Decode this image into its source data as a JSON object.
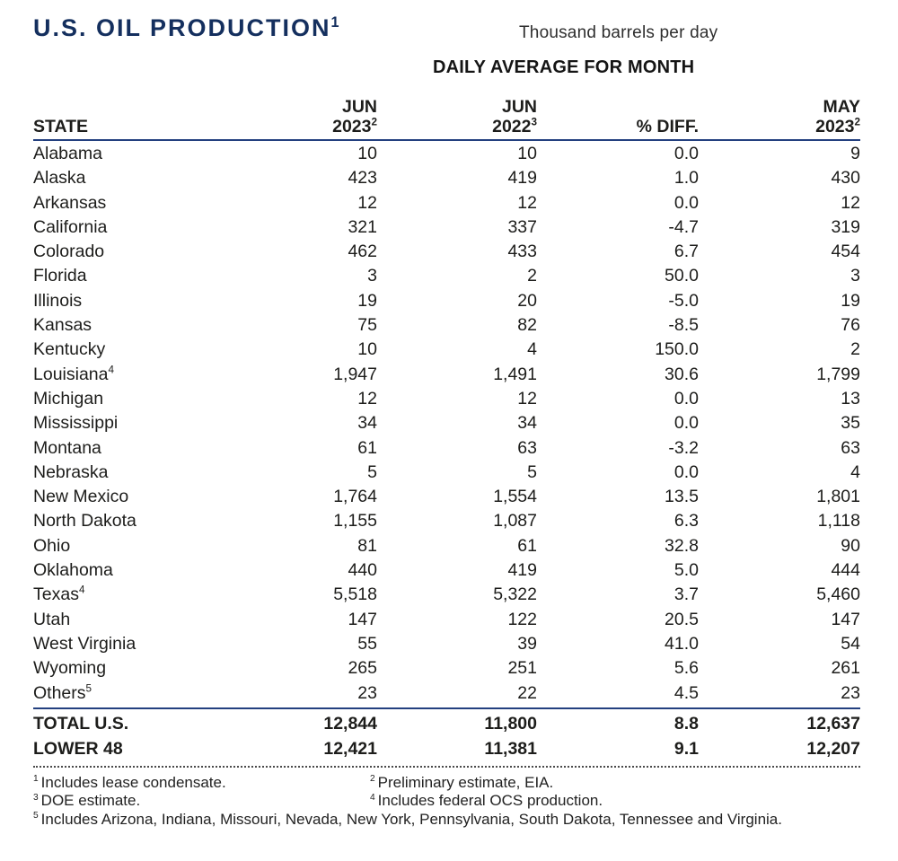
{
  "page": {
    "title": "U.S. OIL PRODUCTION",
    "title_sup": "1",
    "unit_label": "Thousand barrels per day",
    "table_caption": "DAILY AVERAGE FOR MONTH"
  },
  "colors": {
    "title_navy": "#142f5e",
    "rule_navy": "#23407f",
    "text": "#1d1d1b"
  },
  "table": {
    "headers": [
      {
        "line1": "",
        "line2": "STATE"
      },
      {
        "line1": "JUN",
        "line2": "2023",
        "sup": "2"
      },
      {
        "line1": "JUN",
        "line2": "2022",
        "sup": "3"
      },
      {
        "line1": "",
        "line2": "% DIFF."
      },
      {
        "line1": "MAY",
        "line2": "2023",
        "sup": "2"
      }
    ],
    "rows": [
      {
        "state": "Alabama",
        "jun2023": "10",
        "jun2022": "10",
        "pct_diff": "0.0",
        "may2023": "9"
      },
      {
        "state": "Alaska",
        "jun2023": "423",
        "jun2022": "419",
        "pct_diff": "1.0",
        "may2023": "430"
      },
      {
        "state": "Arkansas",
        "jun2023": "12",
        "jun2022": "12",
        "pct_diff": "0.0",
        "may2023": "12"
      },
      {
        "state": "California",
        "jun2023": "321",
        "jun2022": "337",
        "pct_diff": "-4.7",
        "may2023": "319"
      },
      {
        "state": "Colorado",
        "jun2023": "462",
        "jun2022": "433",
        "pct_diff": "6.7",
        "may2023": "454"
      },
      {
        "state": "Florida",
        "jun2023": "3",
        "jun2022": "2",
        "pct_diff": "50.0",
        "may2023": "3"
      },
      {
        "state": "Illinois",
        "jun2023": "19",
        "jun2022": "20",
        "pct_diff": "-5.0",
        "may2023": "19"
      },
      {
        "state": "Kansas",
        "jun2023": "75",
        "jun2022": "82",
        "pct_diff": "-8.5",
        "may2023": "76"
      },
      {
        "state": "Kentucky",
        "jun2023": "10",
        "jun2022": "4",
        "pct_diff": "150.0",
        "may2023": "2"
      },
      {
        "state": "Louisiana",
        "sup": "4",
        "jun2023": "1,947",
        "jun2022": "1,491",
        "pct_diff": "30.6",
        "may2023": "1,799"
      },
      {
        "state": "Michigan",
        "jun2023": "12",
        "jun2022": "12",
        "pct_diff": "0.0",
        "may2023": "13"
      },
      {
        "state": "Mississippi",
        "jun2023": "34",
        "jun2022": "34",
        "pct_diff": "0.0",
        "may2023": "35"
      },
      {
        "state": "Montana",
        "jun2023": "61",
        "jun2022": "63",
        "pct_diff": "-3.2",
        "may2023": "63"
      },
      {
        "state": "Nebraska",
        "jun2023": "5",
        "jun2022": "5",
        "pct_diff": "0.0",
        "may2023": "4"
      },
      {
        "state": "New Mexico",
        "jun2023": "1,764",
        "jun2022": "1,554",
        "pct_diff": "13.5",
        "may2023": "1,801"
      },
      {
        "state": "North Dakota",
        "jun2023": "1,155",
        "jun2022": "1,087",
        "pct_diff": "6.3",
        "may2023": "1,118"
      },
      {
        "state": "Ohio",
        "jun2023": "81",
        "jun2022": "61",
        "pct_diff": "32.8",
        "may2023": "90"
      },
      {
        "state": "Oklahoma",
        "jun2023": "440",
        "jun2022": "419",
        "pct_diff": "5.0",
        "may2023": "444"
      },
      {
        "state": "Texas",
        "sup": "4",
        "jun2023": "5,518",
        "jun2022": "5,322",
        "pct_diff": "3.7",
        "may2023": "5,460"
      },
      {
        "state": "Utah",
        "jun2023": "147",
        "jun2022": "122",
        "pct_diff": "20.5",
        "may2023": "147"
      },
      {
        "state": "West Virginia",
        "jun2023": "55",
        "jun2022": "39",
        "pct_diff": "41.0",
        "may2023": "54"
      },
      {
        "state": "Wyoming",
        "jun2023": "265",
        "jun2022": "251",
        "pct_diff": "5.6",
        "may2023": "261"
      },
      {
        "state": "Others",
        "sup": "5",
        "jun2023": "23",
        "jun2022": "22",
        "pct_diff": "4.5",
        "may2023": "23"
      }
    ],
    "totals": [
      {
        "state": "TOTAL U.S.",
        "jun2023": "12,844",
        "jun2022": "11,800",
        "pct_diff": "8.8",
        "may2023": "12,637"
      },
      {
        "state": "LOWER 48",
        "jun2023": "12,421",
        "jun2022": "11,381",
        "pct_diff": "9.1",
        "may2023": "12,207"
      }
    ]
  },
  "footnotes": [
    {
      "marker": "1",
      "text": "Includes lease condensate."
    },
    {
      "marker": "2",
      "text": "Preliminary estimate, EIA."
    },
    {
      "marker": "3",
      "text": "DOE estimate."
    },
    {
      "marker": "4",
      "text": "Includes federal OCS production."
    },
    {
      "marker": "5",
      "text": "Includes Arizona, Indiana, Missouri, Nevada, New York, Pennsylvania, South Dakota, Tennessee and Virginia."
    }
  ]
}
